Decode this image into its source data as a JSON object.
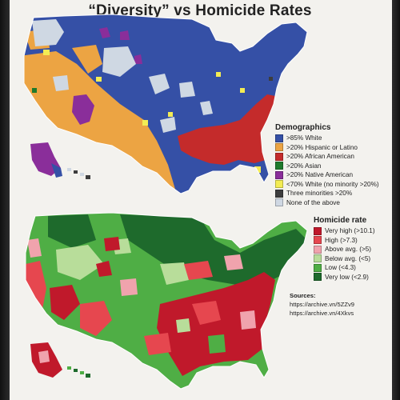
{
  "title": "“Diversity” vs Homicide Rates",
  "demographics_legend": {
    "heading": "Demographics",
    "items": [
      {
        "label": ">85% White",
        "color": "#3550a6"
      },
      {
        "label": ">20% Hispanic or Latino",
        "color": "#eca443"
      },
      {
        "label": ">20% African American",
        "color": "#c42b2b"
      },
      {
        "label": ">20% Asian",
        "color": "#1f7a2c"
      },
      {
        "label": ">20% Native American",
        "color": "#8a2e9a"
      },
      {
        "label": "<70% White (no minority >20%)",
        "color": "#f3ec54"
      },
      {
        "label": "Three minorities >20%",
        "color": "#3d3d3d"
      },
      {
        "label": "None of the above",
        "color": "#cfd8e3"
      }
    ]
  },
  "homicide_legend": {
    "heading": "Homicide rate",
    "items": [
      {
        "label": "Very high (>10.1)",
        "color": "#c0192b"
      },
      {
        "label": "High (>7.3)",
        "color": "#e6474f"
      },
      {
        "label": "Above avg. (>5)",
        "color": "#f0a3ad"
      },
      {
        "label": "Below avg. (<5)",
        "color": "#b8dd9a"
      },
      {
        "label": "Low (<4.3)",
        "color": "#4fae45"
      },
      {
        "label": "Very low (<2.9)",
        "color": "#1e6a2c"
      }
    ]
  },
  "sources": {
    "label": "Sources:",
    "links": [
      "https://archive.vn/5ZZv9",
      "https://archive.vn/4Xkvs"
    ]
  }
}
